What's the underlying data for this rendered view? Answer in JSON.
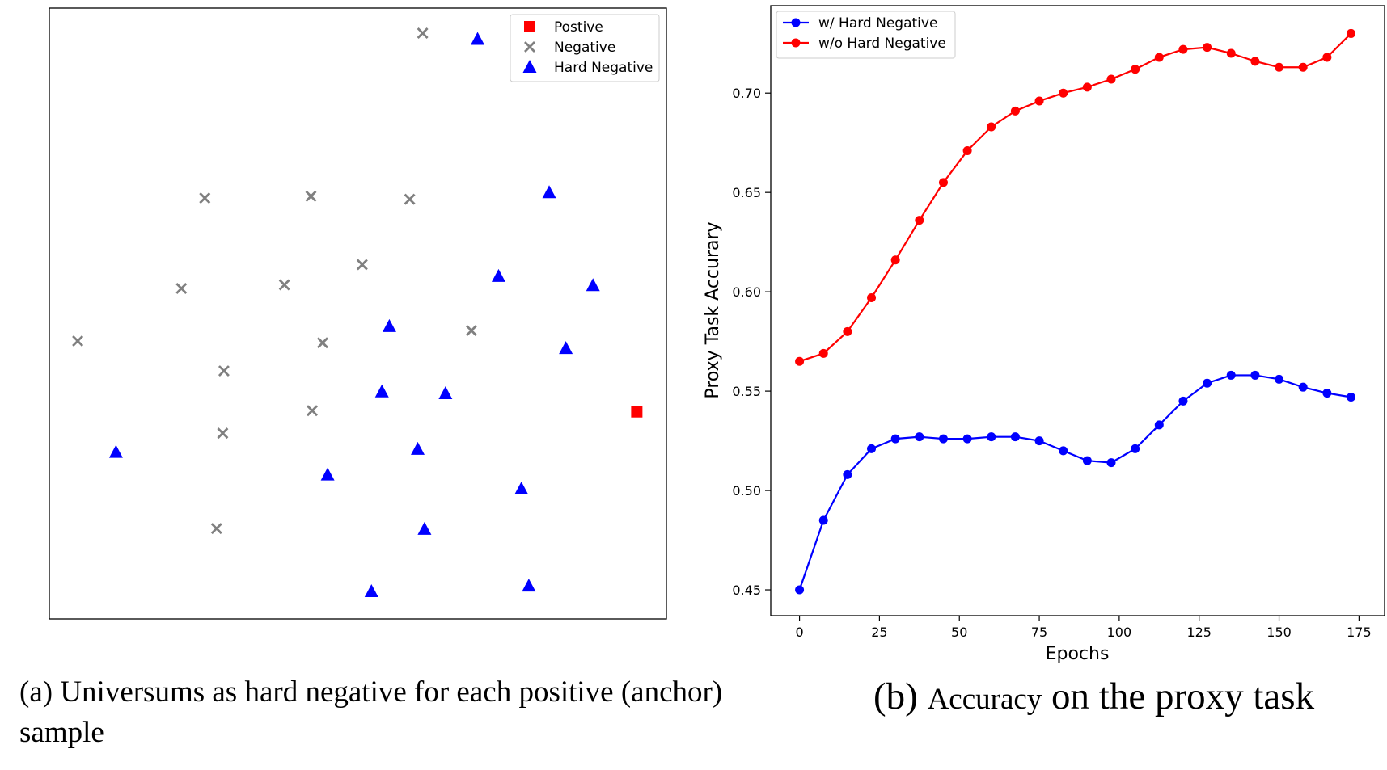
{
  "chart_data": [
    {
      "type": "scatter",
      "title": "",
      "xlabel": "",
      "ylabel": "",
      "xlim": [
        0,
        100
      ],
      "ylim": [
        0,
        100
      ],
      "axes_ticks": false,
      "legend_placement": "top-right",
      "series": [
        {
          "name": "Postive",
          "marker": "square",
          "color": "#ff0000",
          "points": [
            [
              95.2,
              33.9
            ]
          ]
        },
        {
          "name": "Negative",
          "marker": "x",
          "color": "#808080",
          "points": [
            [
              60.5,
              95.9
            ],
            [
              25.2,
              68.9
            ],
            [
              42.4,
              69.2
            ],
            [
              58.4,
              68.7
            ],
            [
              50.7,
              58.0
            ],
            [
              21.4,
              54.1
            ],
            [
              38.1,
              54.7
            ],
            [
              4.6,
              45.5
            ],
            [
              44.3,
              45.2
            ],
            [
              68.4,
              47.2
            ],
            [
              28.3,
              40.6
            ],
            [
              42.6,
              34.1
            ],
            [
              28.1,
              30.4
            ],
            [
              27.1,
              14.8
            ]
          ]
        },
        {
          "name": "Hard Negative",
          "marker": "triangle",
          "color": "#0000ff",
          "points": [
            [
              69.4,
              94.9
            ],
            [
              81.0,
              69.8
            ],
            [
              72.8,
              56.1
            ],
            [
              88.1,
              54.6
            ],
            [
              55.1,
              47.9
            ],
            [
              83.7,
              44.3
            ],
            [
              53.9,
              37.2
            ],
            [
              64.2,
              36.9
            ],
            [
              10.8,
              27.3
            ],
            [
              59.7,
              27.8
            ],
            [
              45.1,
              23.6
            ],
            [
              76.5,
              21.3
            ],
            [
              60.8,
              14.7
            ],
            [
              52.2,
              4.5
            ],
            [
              77.7,
              5.4
            ]
          ]
        }
      ]
    },
    {
      "type": "line",
      "title": "",
      "xlabel": "Epochs",
      "ylabel": "Proxy Task Accurary",
      "xlim": [
        -9,
        183
      ],
      "ylim": [
        0.437,
        0.744
      ],
      "xticks": [
        0,
        25,
        50,
        75,
        100,
        125,
        150,
        175
      ],
      "yticks": [
        0.45,
        0.5,
        0.55,
        0.6,
        0.65,
        0.7
      ],
      "ytick_labels": [
        "0.45",
        "0.50",
        "0.55",
        "0.60",
        "0.65",
        "0.70"
      ],
      "grid": false,
      "legend_placement": "top-left",
      "x": [
        0,
        7.5,
        15,
        22.5,
        30,
        37.5,
        45,
        52.5,
        60,
        67.5,
        75,
        82.5,
        90,
        97.5,
        105,
        112.5,
        120,
        127.5,
        135,
        142.5,
        150,
        157.5,
        165,
        172.5
      ],
      "series": [
        {
          "name": "w/ Hard Negative",
          "color": "#0000ff",
          "values": [
            0.45,
            0.485,
            0.508,
            0.521,
            0.526,
            0.527,
            0.526,
            0.526,
            0.527,
            0.527,
            0.525,
            0.52,
            0.515,
            0.514,
            0.521,
            0.533,
            0.545,
            0.554,
            0.558,
            0.558,
            0.556,
            0.552,
            0.549,
            0.547
          ]
        },
        {
          "name": "w/o Hard Negative",
          "color": "#ff0000",
          "values": [
            0.565,
            0.569,
            0.58,
            0.597,
            0.616,
            0.636,
            0.655,
            0.671,
            0.683,
            0.691,
            0.696,
            0.7,
            0.703,
            0.707,
            0.712,
            0.718,
            0.722,
            0.723,
            0.72,
            0.716,
            0.713,
            0.713,
            0.718,
            0.73
          ]
        }
      ]
    }
  ],
  "captions": {
    "a": "(a) Universums as hard negative for each positive (anchor) sample",
    "b_prefix": "(b) ",
    "b_small": "Accuracy",
    "b_suffix": " on the proxy task"
  }
}
